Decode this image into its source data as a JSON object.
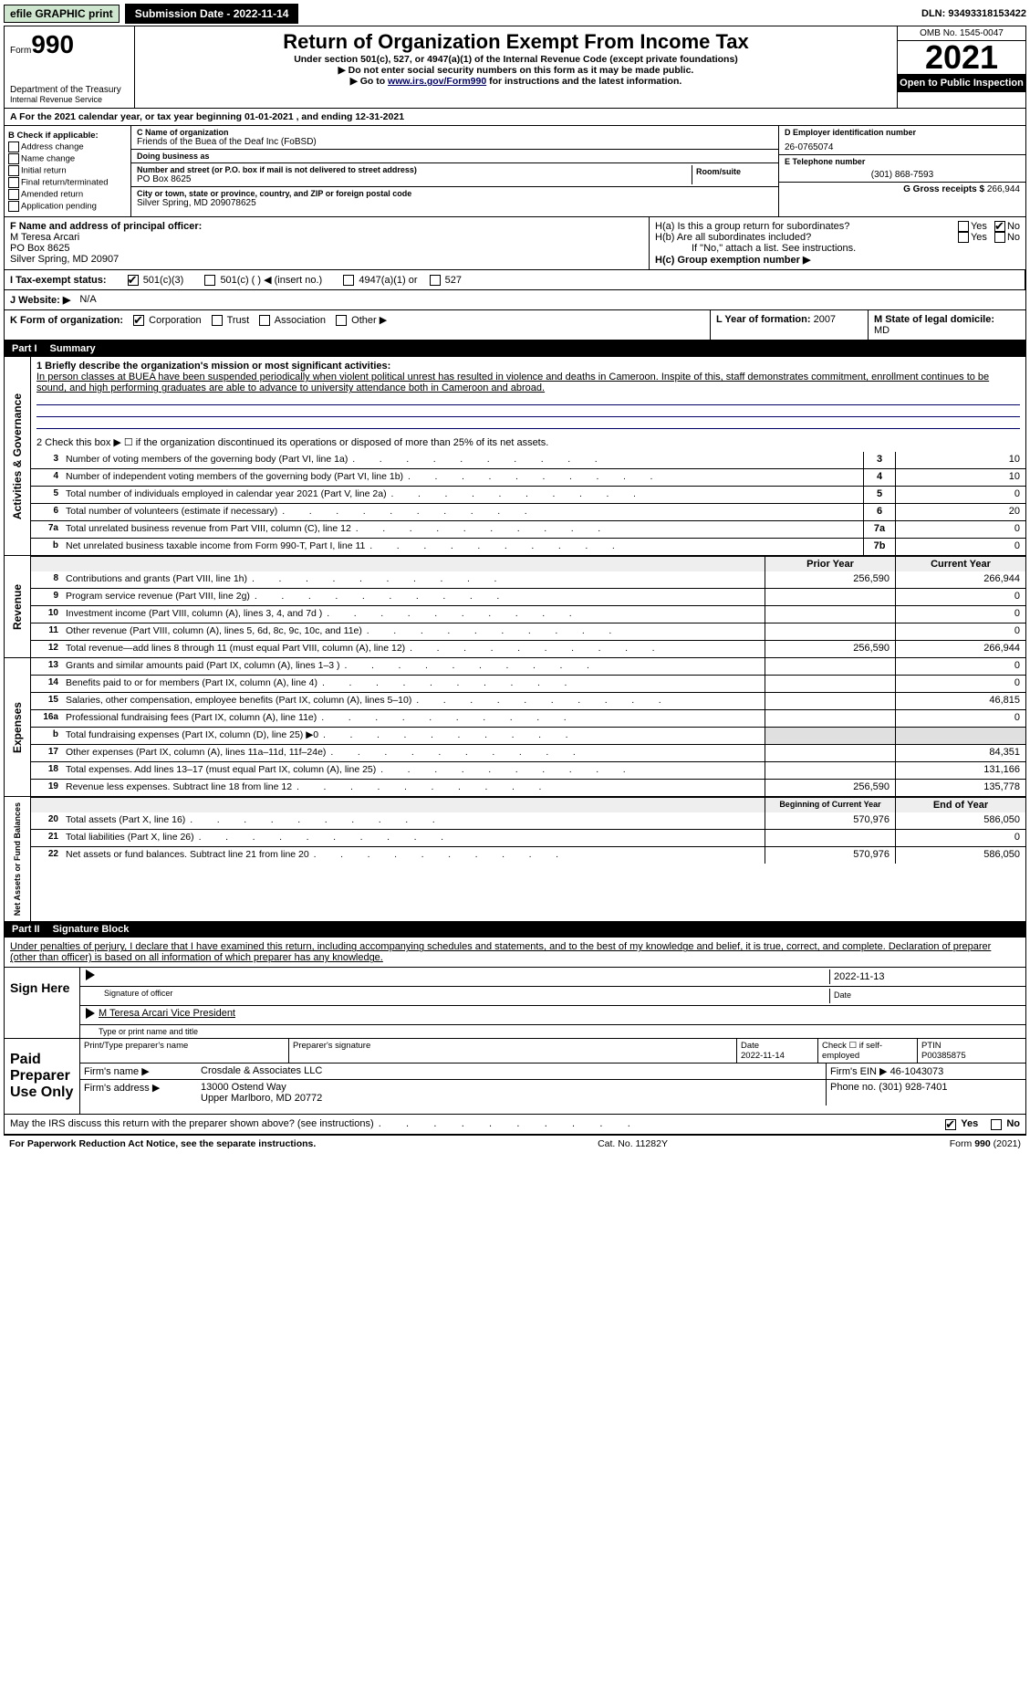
{
  "topbar": {
    "efile": "efile GRAPHIC print",
    "submission_label": "Submission Date - 2022-11-14",
    "dln": "DLN: 93493318153422"
  },
  "header": {
    "form_label": "Form",
    "form_no": "990",
    "dept": "Department of the Treasury",
    "irs": "Internal Revenue Service",
    "title": "Return of Organization Exempt From Income Tax",
    "subtitle": "Under section 501(c), 527, or 4947(a)(1) of the Internal Revenue Code (except private foundations)",
    "note1": "▶ Do not enter social security numbers on this form as it may be made public.",
    "note2_pre": "▶ Go to ",
    "note2_link": "www.irs.gov/Form990",
    "note2_post": " for instructions and the latest information.",
    "omb": "OMB No. 1545-0047",
    "year": "2021",
    "open": "Open to Public Inspection"
  },
  "section_a": "A For the 2021 calendar year, or tax year beginning 01-01-2021    , and ending 12-31-2021",
  "col_b": {
    "header": "B Check if applicable:",
    "items": [
      "Address change",
      "Name change",
      "Initial return",
      "Final return/terminated",
      "Amended return",
      "Application pending"
    ]
  },
  "col_c": {
    "name_label": "C Name of organization",
    "name": "Friends of the Buea of the Deaf Inc (FoBSD)",
    "dba_label": "Doing business as",
    "dba": "",
    "street_label": "Number and street (or P.O. box if mail is not delivered to street address)",
    "room_label": "Room/suite",
    "street": "PO Box 8625",
    "city_label": "City or town, state or province, country, and ZIP or foreign postal code",
    "city": "Silver Spring, MD  209078625"
  },
  "col_d": {
    "ein_label": "D Employer identification number",
    "ein": "26-0765074",
    "phone_label": "E Telephone number",
    "phone": "(301) 868-7593",
    "gross_label": "G Gross receipts $",
    "gross": "266,944"
  },
  "officer": {
    "label": "F  Name and address of principal officer:",
    "name": "M Teresa Arcari",
    "street": "PO Box 8625",
    "city": "Silver Spring, MD  20907"
  },
  "h": {
    "a_label": "H(a)  Is this a group return for subordinates?",
    "b_label": "H(b)  Are all subordinates included?",
    "b_note": "If \"No,\" attach a list. See instructions.",
    "c_label": "H(c)  Group exemption number ▶",
    "yes": "Yes",
    "no": "No"
  },
  "tax_status_label": "I  Tax-exempt status:",
  "tax_opts": [
    "501(c)(3)",
    "501(c) (    ) ◀ (insert no.)",
    "4947(a)(1) or",
    "527"
  ],
  "website_label": "J  Website: ▶",
  "website": "N/A",
  "k_label": "K Form of organization:",
  "k_opts": [
    "Corporation",
    "Trust",
    "Association",
    "Other ▶"
  ],
  "l_label": "L Year of formation:",
  "l_val": "2007",
  "m_label": "M State of legal domicile:",
  "m_val": "MD",
  "part1": {
    "tag": "Part I",
    "title": "Summary"
  },
  "mission_label": "1  Briefly describe the organization's mission or most significant activities:",
  "mission": "In person classes at BUEA have been suspended periodically when violent political unrest has resulted in violence and deaths in Cameroon. Inspite of this, staff demonstrates commitment, enrollment continues to be sound, and high performing graduates are able to advance to university attendance both in Cameroon and abroad.",
  "line2": "2  Check this box ▶ ☐  if the organization discontinued its operations or disposed of more than 25% of its net assets.",
  "gov_lines": [
    {
      "n": "3",
      "t": "Number of voting members of the governing body (Part VI, line 1a)",
      "box": "3",
      "v": "10"
    },
    {
      "n": "4",
      "t": "Number of independent voting members of the governing body (Part VI, line 1b)",
      "box": "4",
      "v": "10"
    },
    {
      "n": "5",
      "t": "Total number of individuals employed in calendar year 2021 (Part V, line 2a)",
      "box": "5",
      "v": "0"
    },
    {
      "n": "6",
      "t": "Total number of volunteers (estimate if necessary)",
      "box": "6",
      "v": "20"
    },
    {
      "n": "7a",
      "t": "Total unrelated business revenue from Part VIII, column (C), line 12",
      "box": "7a",
      "v": "0"
    },
    {
      "n": "b",
      "t": "Net unrelated business taxable income from Form 990-T, Part I, line 11",
      "box": "7b",
      "v": "0"
    }
  ],
  "col_hdr_prior": "Prior Year",
  "col_hdr_curr": "Current Year",
  "rev_lines": [
    {
      "n": "8",
      "t": "Contributions and grants (Part VIII, line 1h)",
      "p": "256,590",
      "c": "266,944"
    },
    {
      "n": "9",
      "t": "Program service revenue (Part VIII, line 2g)",
      "p": "",
      "c": "0"
    },
    {
      "n": "10",
      "t": "Investment income (Part VIII, column (A), lines 3, 4, and 7d )",
      "p": "",
      "c": "0"
    },
    {
      "n": "11",
      "t": "Other revenue (Part VIII, column (A), lines 5, 6d, 8c, 9c, 10c, and 11e)",
      "p": "",
      "c": "0"
    },
    {
      "n": "12",
      "t": "Total revenue—add lines 8 through 11 (must equal Part VIII, column (A), line 12)",
      "p": "256,590",
      "c": "266,944"
    }
  ],
  "exp_lines": [
    {
      "n": "13",
      "t": "Grants and similar amounts paid (Part IX, column (A), lines 1–3 )",
      "p": "",
      "c": "0"
    },
    {
      "n": "14",
      "t": "Benefits paid to or for members (Part IX, column (A), line 4)",
      "p": "",
      "c": "0"
    },
    {
      "n": "15",
      "t": "Salaries, other compensation, employee benefits (Part IX, column (A), lines 5–10)",
      "p": "",
      "c": "46,815"
    },
    {
      "n": "16a",
      "t": "Professional fundraising fees (Part IX, column (A), line 11e)",
      "p": "",
      "c": "0"
    },
    {
      "n": "b",
      "t": "Total fundraising expenses (Part IX, column (D), line 25) ▶0",
      "p": "shade",
      "c": "shade"
    },
    {
      "n": "17",
      "t": "Other expenses (Part IX, column (A), lines 11a–11d, 11f–24e)",
      "p": "",
      "c": "84,351"
    },
    {
      "n": "18",
      "t": "Total expenses. Add lines 13–17 (must equal Part IX, column (A), line 25)",
      "p": "",
      "c": "131,166"
    },
    {
      "n": "19",
      "t": "Revenue less expenses. Subtract line 18 from line 12",
      "p": "256,590",
      "c": "135,778"
    }
  ],
  "na_hdr_beg": "Beginning of Current Year",
  "na_hdr_end": "End of Year",
  "na_lines": [
    {
      "n": "20",
      "t": "Total assets (Part X, line 16)",
      "p": "570,976",
      "c": "586,050"
    },
    {
      "n": "21",
      "t": "Total liabilities (Part X, line 26)",
      "p": "",
      "c": "0"
    },
    {
      "n": "22",
      "t": "Net assets or fund balances. Subtract line 21 from line 20",
      "p": "570,976",
      "c": "586,050"
    }
  ],
  "vtabs": {
    "gov": "Activities & Governance",
    "rev": "Revenue",
    "exp": "Expenses",
    "na": "Net Assets or Fund Balances"
  },
  "part2": {
    "tag": "Part II",
    "title": "Signature Block"
  },
  "jurat": "Under penalties of perjury, I declare that I have examined this return, including accompanying schedules and statements, and to the best of my knowledge and belief, it is true, correct, and complete. Declaration of preparer (other than officer) is based on all information of which preparer has any knowledge.",
  "sign": {
    "here": "Sign Here",
    "date": "2022-11-13",
    "sig_label": "Signature of officer",
    "date_label": "Date",
    "name": "M Teresa Arcari  Vice President",
    "name_label": "Type or print name and title"
  },
  "paid": {
    "title": "Paid Preparer Use Only",
    "h_name": "Print/Type preparer's name",
    "h_sig": "Preparer's signature",
    "h_date": "Date",
    "date": "2022-11-14",
    "h_check": "Check ☐ if self-employed",
    "h_ptin": "PTIN",
    "ptin": "P00385875",
    "firm_label": "Firm's name      ▶",
    "firm": "Crosdale & Associates LLC",
    "ein_label": "Firm's EIN ▶",
    "ein": "46-1043073",
    "addr_label": "Firm's address ▶",
    "addr1": "13000 Ostend Way",
    "addr2": "Upper Marlboro, MD  20772",
    "phone_label": "Phone no.",
    "phone": "(301) 928-7401"
  },
  "discuss": "May the IRS discuss this return with the preparer shown above? (see instructions)",
  "discuss_yes": "Yes",
  "discuss_no": "No",
  "footer": {
    "left": "For Paperwork Reduction Act Notice, see the separate instructions.",
    "mid": "Cat. No. 11282Y",
    "right": "Form 990 (2021)"
  }
}
